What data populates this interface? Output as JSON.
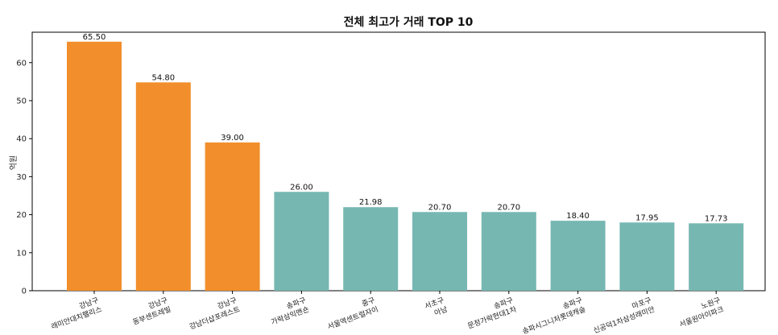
{
  "chart_data": {
    "type": "bar",
    "title": "전체 최고가 거래 TOP 10",
    "xlabel": "",
    "ylabel": "억원",
    "ylim": [
      0,
      68
    ],
    "yticks": [
      0,
      10,
      20,
      30,
      40,
      50,
      60
    ],
    "grid": false,
    "categories": [
      [
        "강남구",
        "래미안대치팰리스"
      ],
      [
        "강남구",
        "동부센트레빌"
      ],
      [
        "강남구",
        "강남더샵포레스트"
      ],
      [
        "송파구",
        "가락삼익맨숀"
      ],
      [
        "중구",
        "서울역센트럴자이"
      ],
      [
        "서초구",
        "아남"
      ],
      [
        "송파구",
        "문정가락현대1차"
      ],
      [
        "송파구",
        "송파시그니처롯데캐슬"
      ],
      [
        "마포구",
        "신공덕1차삼성래미안"
      ],
      [
        "노원구",
        "서울원아이파크"
      ]
    ],
    "values": [
      65.5,
      54.8,
      39.0,
      26.0,
      21.98,
      20.7,
      20.7,
      18.4,
      17.95,
      17.73
    ],
    "value_labels": [
      "65.50",
      "54.80",
      "39.00",
      "26.00",
      "21.98",
      "20.70",
      "20.70",
      "18.40",
      "17.95",
      "17.73"
    ],
    "colors": [
      "#f28e2b",
      "#f28e2b",
      "#f28e2b",
      "#76b7b2",
      "#76b7b2",
      "#76b7b2",
      "#76b7b2",
      "#76b7b2",
      "#76b7b2",
      "#76b7b2"
    ]
  }
}
